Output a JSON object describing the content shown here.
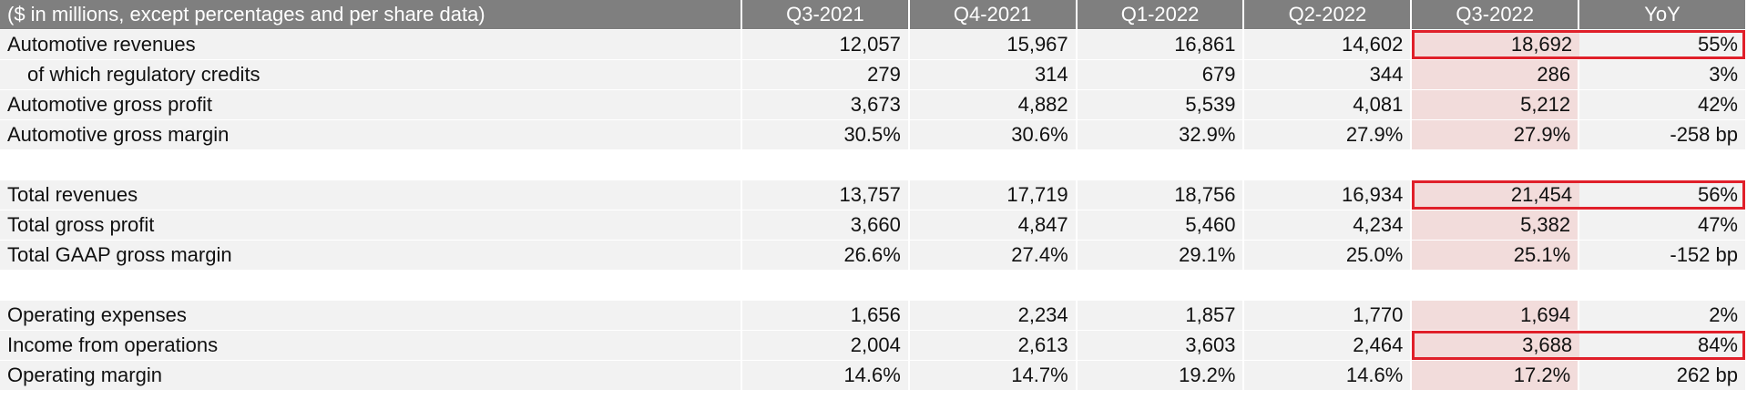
{
  "table": {
    "header": [
      "($ in millions, except percentages and per share data)",
      "Q3-2021",
      "Q4-2021",
      "Q1-2022",
      "Q2-2022",
      "Q3-2022",
      "YoY"
    ],
    "highlight_column": 5,
    "sections": [
      {
        "rows": [
          {
            "label": "Automotive revenues",
            "cells": [
              "12,057",
              "15,967",
              "16,861",
              "14,602",
              "18,692",
              "55%"
            ],
            "boxed": true
          },
          {
            "label": "of which regulatory credits",
            "cells": [
              "279",
              "314",
              "679",
              "344",
              "286",
              "3%"
            ],
            "indent": true
          },
          {
            "label": "Automotive gross profit",
            "cells": [
              "3,673",
              "4,882",
              "5,539",
              "4,081",
              "5,212",
              "42%"
            ]
          },
          {
            "label": "Automotive gross margin",
            "cells": [
              "30.5%",
              "30.6%",
              "32.9%",
              "27.9%",
              "27.9%",
              "-258 bp"
            ]
          }
        ]
      },
      {
        "rows": [
          {
            "label": "Total revenues",
            "cells": [
              "13,757",
              "17,719",
              "18,756",
              "16,934",
              "21,454",
              "56%"
            ],
            "boxed": true
          },
          {
            "label": "Total gross profit",
            "cells": [
              "3,660",
              "4,847",
              "5,460",
              "4,234",
              "5,382",
              "47%"
            ]
          },
          {
            "label": "Total GAAP gross margin",
            "cells": [
              "26.6%",
              "27.4%",
              "29.1%",
              "25.0%",
              "25.1%",
              "-152 bp"
            ]
          }
        ]
      },
      {
        "rows": [
          {
            "label": "Operating expenses",
            "cells": [
              "1,656",
              "2,234",
              "1,857",
              "1,770",
              "1,694",
              "2%"
            ]
          },
          {
            "label": "Income from operations",
            "cells": [
              "2,004",
              "2,613",
              "3,603",
              "2,464",
              "3,688",
              "84%"
            ],
            "boxed": true
          },
          {
            "label": "Operating margin",
            "cells": [
              "14.6%",
              "14.7%",
              "19.2%",
              "14.6%",
              "17.2%",
              "262 bp"
            ]
          }
        ]
      }
    ]
  }
}
